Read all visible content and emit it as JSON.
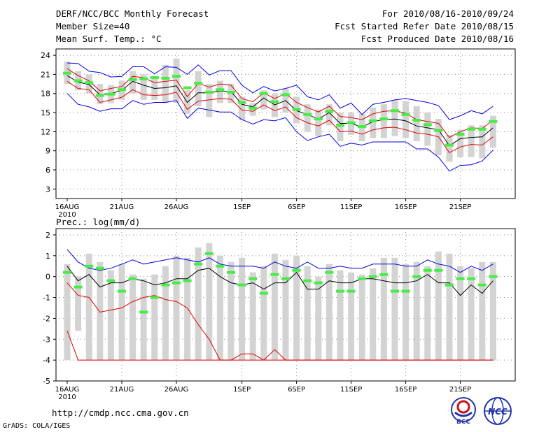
{
  "header": {
    "title": "DERF/NCC/BCC Monthly Forecast",
    "member_size": "Member Size=40",
    "variable": "Mean Surf. Temp.: °C",
    "period": "For 2010/08/16-2010/09/24",
    "started": "Fcst Started Refer Date 2010/08/15",
    "produced": "Fcst Produced Date 2010/08/16"
  },
  "footer": {
    "url": "http://cmdp.ncc.cma.gov.cn",
    "credit": "GrADS: COLA/IGES",
    "logo_bcc": "BCC",
    "logo_ncc": "NCC"
  },
  "colors": {
    "bar": "#d3d3d3",
    "mean": "#000000",
    "std": "#e00000",
    "envelope": "#0000e0",
    "marker": "#44ee44",
    "grid": "#888888"
  },
  "chart_data": [
    {
      "type": "line",
      "title": "Mean Surf. Temp.: °C",
      "x_tick_labels": [
        "16AUG",
        "21AUG",
        "26AUG",
        "1SEP",
        "6SEP",
        "11SEP",
        "16SEP",
        "21SEP"
      ],
      "x_tick_days": [
        0,
        5,
        10,
        16,
        21,
        26,
        31,
        36
      ],
      "x_sublabel": "2010",
      "ylim": [
        1.5,
        25
      ],
      "y_ticks": [
        3,
        6,
        9,
        12,
        15,
        18,
        21,
        24
      ],
      "day": [
        0,
        1,
        2,
        3,
        4,
        5,
        6,
        7,
        8,
        9,
        10,
        11,
        12,
        13,
        14,
        15,
        16,
        17,
        18,
        19,
        20,
        21,
        22,
        23,
        24,
        25,
        26,
        27,
        28,
        29,
        30,
        31,
        32,
        33,
        34,
        35,
        36,
        37,
        38,
        39
      ],
      "series": [
        {
          "name": "max",
          "values": [
            22.8,
            22.7,
            21.5,
            21.3,
            20.6,
            20.7,
            22.2,
            22.2,
            21.1,
            22.2,
            22.1,
            21.0,
            22.5,
            20.9,
            21.6,
            21.6,
            19.3,
            18.1,
            19.1,
            18.4,
            18.8,
            19.3,
            17.5,
            17.0,
            17.8,
            15.7,
            16.5,
            14.7,
            16.3,
            16.6,
            17.0,
            17.2,
            16.9,
            16.6,
            16.1,
            13.9,
            14.5,
            15.3,
            14.8,
            16.0
          ]
        },
        {
          "name": "upper_std",
          "values": [
            21.9,
            20.8,
            20.0,
            18.4,
            18.8,
            19.1,
            20.7,
            20.5,
            19.7,
            19.9,
            20.1,
            17.5,
            19.6,
            19.0,
            19.5,
            19.3,
            17.2,
            16.7,
            18.1,
            17.2,
            18.0,
            16.6,
            15.8,
            15.1,
            16.0,
            14.4,
            14.2,
            13.9,
            14.8,
            15.2,
            15.3,
            14.9,
            13.9,
            13.6,
            13.3,
            11.1,
            12.0,
            12.6,
            12.5,
            13.8
          ]
        },
        {
          "name": "mean",
          "values": [
            20.8,
            19.8,
            19.4,
            17.8,
            18.0,
            18.5,
            19.9,
            19.3,
            18.8,
            18.9,
            19.2,
            16.6,
            18.1,
            18.1,
            18.4,
            18.3,
            16.3,
            15.9,
            17.3,
            16.2,
            16.9,
            15.3,
            14.7,
            14.0,
            15.0,
            13.3,
            13.3,
            12.7,
            13.6,
            13.9,
            14.0,
            13.7,
            12.9,
            12.6,
            12.3,
            9.8,
            10.9,
            11.1,
            11.2,
            12.6
          ]
        },
        {
          "name": "lower_std",
          "values": [
            19.9,
            18.8,
            18.6,
            16.6,
            17.0,
            17.4,
            18.6,
            17.8,
            17.7,
            17.8,
            18.2,
            15.5,
            16.8,
            17.0,
            17.2,
            17.1,
            15.4,
            15.2,
            16.2,
            15.3,
            15.9,
            14.2,
            13.4,
            12.9,
            13.8,
            12.0,
            12.1,
            11.6,
            12.3,
            12.6,
            12.7,
            12.3,
            11.8,
            11.6,
            11.2,
            8.7,
            9.6,
            10.0,
            9.9,
            11.2
          ]
        },
        {
          "name": "min",
          "values": [
            18.0,
            16.3,
            15.9,
            15.2,
            15.6,
            15.6,
            16.9,
            16.3,
            16.6,
            16.6,
            16.9,
            14.1,
            15.7,
            15.4,
            15.1,
            15.1,
            13.9,
            13.2,
            13.9,
            13.7,
            14.2,
            12.0,
            10.6,
            11.2,
            11.6,
            9.7,
            10.2,
            9.9,
            10.4,
            10.4,
            10.4,
            10.4,
            9.3,
            9.3,
            8.0,
            5.8,
            6.7,
            6.8,
            7.4,
            9.1
          ]
        },
        {
          "name": "bar_top",
          "values": [
            23.0,
            21.5,
            21.0,
            19.5,
            19.3,
            20.0,
            21.5,
            21.0,
            20.5,
            22.5,
            23.5,
            18.5,
            21.5,
            19.5,
            20.0,
            19.5,
            17.5,
            16.5,
            18.5,
            18.0,
            18.8,
            17.5,
            16.3,
            15.5,
            16.3,
            15.0,
            15.0,
            14.8,
            15.8,
            16.3,
            17.0,
            16.8,
            16.0,
            15.0,
            14.0,
            11.5,
            12.3,
            13.0,
            13.0,
            14.5
          ]
        },
        {
          "name": "bar_bottom",
          "values": [
            19.5,
            18.5,
            18.0,
            16.3,
            16.5,
            17.0,
            18.0,
            17.0,
            17.0,
            16.5,
            16.5,
            14.8,
            16.0,
            14.3,
            16.5,
            16.5,
            13.8,
            14.5,
            15.5,
            14.3,
            15.0,
            13.3,
            12.0,
            11.3,
            13.0,
            10.5,
            11.5,
            10.5,
            11.0,
            11.0,
            11.3,
            11.0,
            10.5,
            9.8,
            8.3,
            7.3,
            8.0,
            8.0,
            7.8,
            9.5
          ]
        },
        {
          "name": "observed_marker",
          "values": [
            21.2,
            20.0,
            19.7,
            17.7,
            17.9,
            18.6,
            20.2,
            20.3,
            20.5,
            20.4,
            20.7,
            18.9,
            19.6,
            18.2,
            18.6,
            18.2,
            16.6,
            15.7,
            18.0,
            16.7,
            17.8,
            15.5,
            14.7,
            14.0,
            15.2,
            13.0,
            13.4,
            12.8,
            13.7,
            14.0,
            15.3,
            14.7,
            13.8,
            13.1,
            12.2,
            9.9,
            11.6,
            12.4,
            12.4,
            13.6
          ]
        }
      ]
    },
    {
      "type": "line",
      "title": "Prec.: log(mm/d)",
      "x_tick_labels": [
        "16AUG",
        "21AUG",
        "26AUG",
        "1SEP",
        "6SEP",
        "11SEP",
        "16SEP",
        "21SEP"
      ],
      "x_tick_days": [
        0,
        5,
        10,
        16,
        21,
        26,
        31,
        36
      ],
      "x_sublabel": "2010",
      "ylim": [
        -5,
        2.3
      ],
      "y_ticks": [
        -5,
        -4,
        -3,
        -2,
        -1,
        0,
        1,
        2
      ],
      "baseline": -4,
      "day": [
        0,
        1,
        2,
        3,
        4,
        5,
        6,
        7,
        8,
        9,
        10,
        11,
        12,
        13,
        14,
        15,
        16,
        17,
        18,
        19,
        20,
        21,
        22,
        23,
        24,
        25,
        26,
        27,
        28,
        29,
        30,
        31,
        32,
        33,
        34,
        35,
        36,
        37,
        38,
        39
      ],
      "series": [
        {
          "name": "max",
          "values": [
            1.3,
            0.7,
            0.4,
            0.3,
            0.4,
            0.6,
            0.8,
            0.6,
            0.7,
            0.8,
            0.9,
            0.8,
            0.7,
            0.9,
            0.6,
            0.5,
            0.5,
            0.5,
            0.4,
            0.7,
            0.5,
            0.4,
            0.7,
            0.4,
            0.4,
            0.5,
            0.4,
            0.4,
            0.6,
            0.6,
            0.6,
            0.5,
            0.5,
            0.8,
            0.6,
            0.5,
            0.2,
            0.5,
            0.3,
            0.6
          ]
        },
        {
          "name": "mean",
          "values": [
            0.5,
            -0.2,
            0.1,
            -0.5,
            -0.3,
            -0.3,
            -0.1,
            -0.2,
            -0.4,
            -0.3,
            -0.1,
            -0.1,
            0.3,
            0.4,
            0.0,
            -0.3,
            -0.4,
            -0.3,
            -0.6,
            -0.3,
            -0.3,
            0.2,
            -0.6,
            -0.6,
            -0.2,
            -0.3,
            -0.3,
            -0.1,
            -0.1,
            -0.2,
            -0.3,
            -0.3,
            -0.2,
            0.1,
            -0.3,
            -0.3,
            -0.9,
            -0.4,
            -0.8,
            -0.2
          ]
        },
        {
          "name": "min_log",
          "values": [
            -2.6,
            -4.0,
            -4.0,
            -4.0,
            -4.0,
            -4.0,
            -4.0,
            -4.0,
            -4.0,
            -4.0,
            -4.0,
            -4.0,
            -4.0,
            -4.0,
            -4.0,
            -4.0,
            -3.7,
            -3.7,
            -4.0,
            -3.5,
            -4.0,
            -4.0,
            -4.0,
            -4.0,
            -4.0,
            -4.0,
            -4.0,
            -4.0,
            -4.0,
            -4.0,
            -4.0,
            -4.0,
            -4.0,
            -4.0,
            -4.0,
            -4.0,
            -4.0,
            -4.0,
            -4.0,
            -4.0
          ]
        },
        {
          "name": "lower_std",
          "values": [
            -0.3,
            -0.9,
            -1.0,
            -1.7,
            -1.6,
            -1.5,
            -1.2,
            -1.0,
            -0.9,
            -1.1,
            -1.2,
            -1.5,
            -2.3,
            -3.0,
            -4.0,
            -4.0,
            -4.0,
            -4.0,
            -4.0,
            -4.0,
            -4.0,
            -4.0,
            -4.0,
            -4.0,
            -4.0,
            -4.0,
            -4.0,
            -4.0,
            -4.0,
            -4.0,
            -4.0,
            -4.0,
            -4.0,
            -4.0,
            -4.0,
            -4.0,
            -4.0,
            -4.0,
            -4.0,
            -4.0
          ]
        },
        {
          "name": "bar_top",
          "values": [
            0.6,
            0.0,
            1.1,
            0.7,
            0.3,
            0.6,
            0.1,
            -0.1,
            0.1,
            0.5,
            1.0,
            0.9,
            1.4,
            1.6,
            1.0,
            0.7,
            0.9,
            0.2,
            0.5,
            1.1,
            0.8,
            1.0,
            0.5,
            0.0,
            0.6,
            0.3,
            0.2,
            0.1,
            0.4,
            0.9,
            0.9,
            0.6,
            0.7,
            0.5,
            1.2,
            1.1,
            0.5,
            0.4,
            0.7,
            0.7
          ]
        },
        {
          "name": "bar_bottom",
          "values": [
            -4.0,
            -2.6,
            -4.0,
            -4.0,
            -4.0,
            -4.0,
            -4.0,
            -4.0,
            -4.0,
            -4.0,
            -4.0,
            -4.0,
            -4.0,
            -4.0,
            -4.0,
            -4.0,
            -4.0,
            -4.0,
            -4.0,
            -4.0,
            -4.0,
            -4.0,
            -4.0,
            -4.0,
            -4.0,
            -4.0,
            -4.0,
            -4.0,
            -4.0,
            -4.0,
            -4.0,
            -4.0,
            -4.0,
            -4.0,
            -4.0,
            -4.0,
            -4.0,
            -4.0,
            -4.0,
            -4.0
          ]
        },
        {
          "name": "observed_marker",
          "values": [
            0.2,
            -0.5,
            0.5,
            0.4,
            -0.2,
            -0.7,
            -0.1,
            -1.7,
            -1.0,
            -0.4,
            -0.3,
            -0.2,
            0.6,
            1.1,
            0.5,
            0.2,
            -0.4,
            -0.1,
            -0.8,
            0.1,
            -0.1,
            0.3,
            -0.2,
            -0.3,
            0.2,
            -0.7,
            -0.7,
            -0.1,
            0.0,
            0.1,
            -0.7,
            -0.7,
            0.0,
            0.3,
            0.3,
            -0.4,
            -0.1,
            -0.1,
            -0.4,
            0.0
          ]
        }
      ]
    }
  ]
}
